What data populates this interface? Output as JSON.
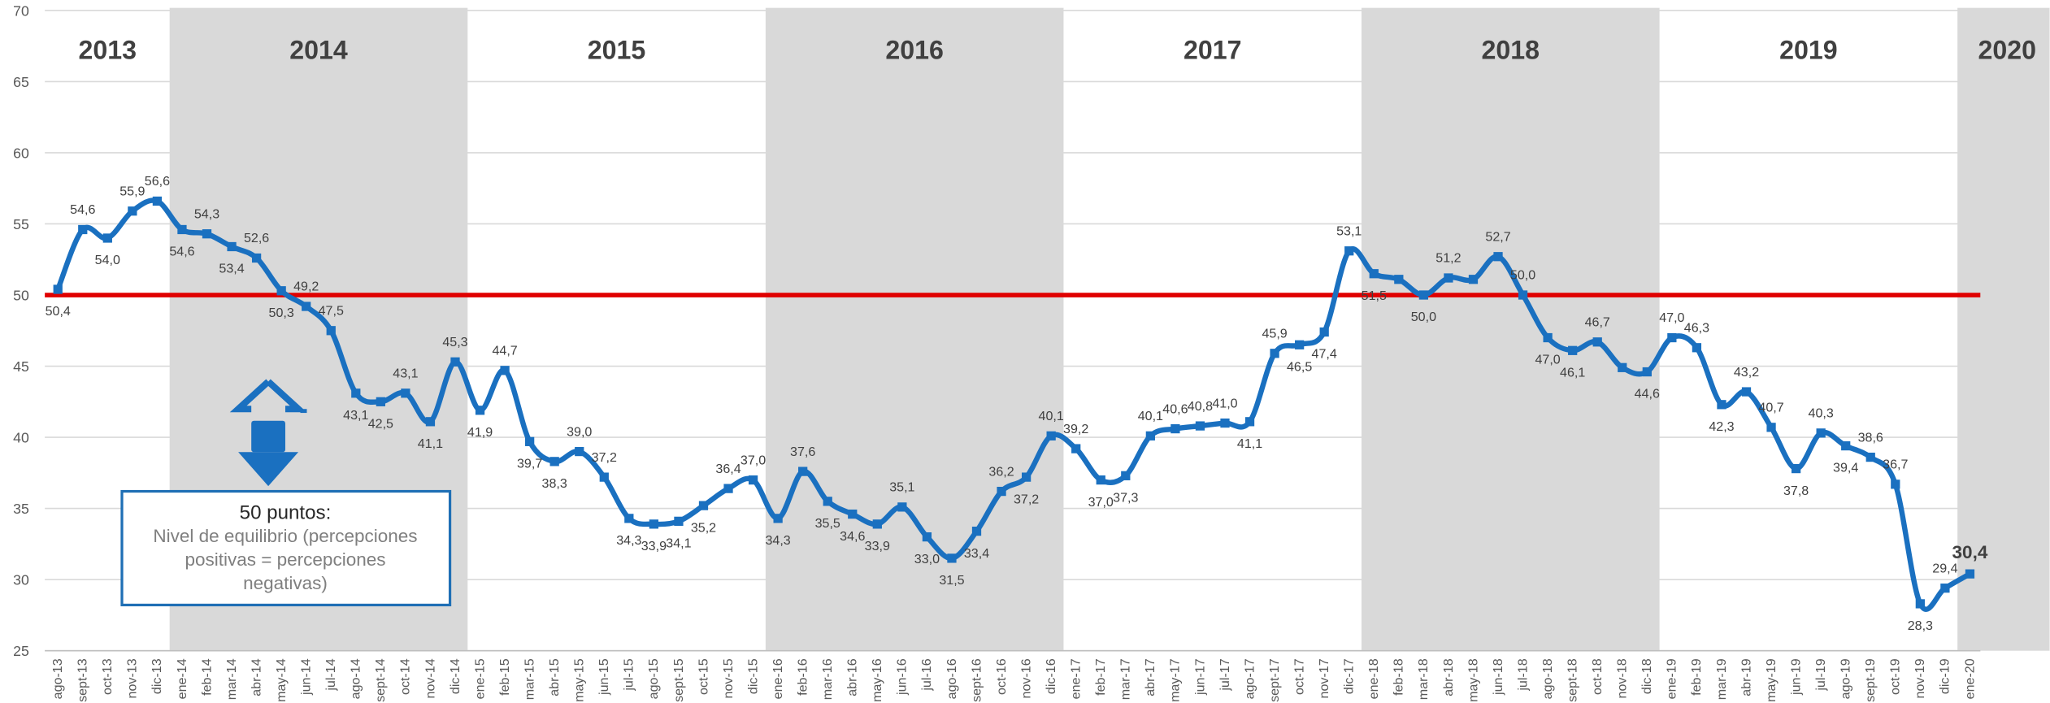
{
  "chart_data": {
    "type": "line",
    "categories": [
      "ago-13",
      "sept-13",
      "oct-13",
      "nov-13",
      "dic-13",
      "ene-14",
      "feb-14",
      "mar-14",
      "abr-14",
      "may-14",
      "jun-14",
      "jul-14",
      "ago-14",
      "sept-14",
      "oct-14",
      "nov-14",
      "dic-14",
      "ene-15",
      "feb-15",
      "mar-15",
      "abr-15",
      "may-15",
      "jun-15",
      "jul-15",
      "ago-15",
      "sept-15",
      "oct-15",
      "nov-15",
      "dic-15",
      "ene-16",
      "feb-16",
      "mar-16",
      "abr-16",
      "may-16",
      "jun-16",
      "jul-16",
      "ago-16",
      "sept-16",
      "oct-16",
      "nov-16",
      "dic-16",
      "ene-17",
      "feb-17",
      "mar-17",
      "abr-17",
      "may-17",
      "jun-17",
      "jul-17",
      "ago-17",
      "sept-17",
      "oct-17",
      "nov-17",
      "dic-17",
      "ene-18",
      "feb-18",
      "mar-18",
      "abr-18",
      "may-18",
      "jun-18",
      "jul-18",
      "ago-18",
      "sept-18",
      "oct-18",
      "nov-18",
      "dic-18",
      "ene-19",
      "feb-19",
      "mar-19",
      "abr-19",
      "may-19",
      "jun-19",
      "jul-19",
      "ago-19",
      "sept-19",
      "oct-19",
      "nov-19",
      "dic-19",
      "ene-20"
    ],
    "series": [
      {
        "color": "#1a70c0",
        "values": [
          50.4,
          54.6,
          54.0,
          55.9,
          56.6,
          54.6,
          54.3,
          53.4,
          52.6,
          50.3,
          49.2,
          47.5,
          43.1,
          42.5,
          43.1,
          41.1,
          45.3,
          41.9,
          44.7,
          39.7,
          38.3,
          39.0,
          37.2,
          34.3,
          33.9,
          34.1,
          35.2,
          36.4,
          37.0,
          34.3,
          37.6,
          35.5,
          34.6,
          33.9,
          35.1,
          33.0,
          31.5,
          33.4,
          36.2,
          37.2,
          40.1,
          39.2,
          37.0,
          37.3,
          40.1,
          40.6,
          40.8,
          41.0,
          41.1,
          45.9,
          46.5,
          47.4,
          53.1,
          51.5,
          51.1,
          50.0,
          51.2,
          51.1,
          52.7,
          50.0,
          47.0,
          46.1,
          46.7,
          44.9,
          44.6,
          47.0,
          46.3,
          42.3,
          43.2,
          40.7,
          37.8,
          40.3,
          39.4,
          38.6,
          36.7,
          28.3,
          29.4,
          30.4
        ],
        "value_labels": [
          "50,4",
          "54,6",
          "54,0",
          "55,9",
          "56,6",
          "54,6",
          "54,3",
          "53,4",
          "52,6",
          "50,3",
          "49,2",
          "47,5",
          "43,1",
          "42,5",
          "43,1",
          "41,1",
          "45,3",
          "41,9",
          "44,7",
          "39,7",
          "38,3",
          "39,0",
          "37,2",
          "34,3",
          "33,9",
          "34,1",
          "35,2",
          "36,4",
          "37,0",
          "34,3",
          "37,6",
          "35,5",
          "34,6",
          "33,9",
          "35,1",
          "33,0",
          "31,5",
          "33,4",
          "36,2",
          "37,2",
          "40,1",
          "39,2",
          "37,0",
          "37,3",
          "40,1",
          "40,6",
          "40,8",
          "41,0",
          "41,1",
          "45,9",
          "46,5",
          "47,4",
          "53,1",
          "51,5",
          null,
          "50,0",
          "51,2",
          null,
          "52,7",
          "50,0",
          "47,0",
          "46,1",
          "46,7",
          null,
          "44,6",
          "47,0",
          "46,3",
          "42,3",
          "43,2",
          "40,7",
          "37,8",
          "40,3",
          "39,4",
          "38,6",
          "36,7",
          "28,3",
          "29,4",
          "30,4"
        ]
      }
    ],
    "ylim": [
      25,
      70
    ],
    "yticks": [
      25,
      30,
      35,
      40,
      45,
      50,
      55,
      60,
      65,
      70
    ],
    "grid": true,
    "reference_line": {
      "value": 50,
      "color": "#e00000"
    },
    "years": [
      {
        "label": "2013",
        "shaded": false
      },
      {
        "label": "2014",
        "shaded": true
      },
      {
        "label": "2015",
        "shaded": false
      },
      {
        "label": "2016",
        "shaded": true
      },
      {
        "label": "2017",
        "shaded": false
      },
      {
        "label": "2018",
        "shaded": true
      },
      {
        "label": "2019",
        "shaded": false
      },
      {
        "label": "2020",
        "shaded": true
      }
    ],
    "annotation": {
      "title": "50 puntos:",
      "lines": [
        "Nivel de equilibrio (percepciones",
        "positivas = percepciones",
        "negativas)"
      ]
    }
  }
}
